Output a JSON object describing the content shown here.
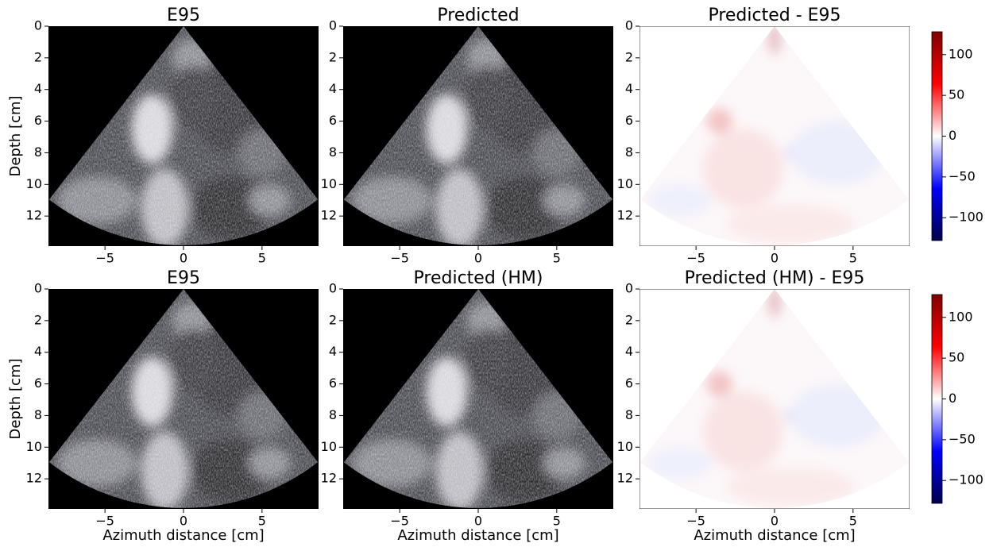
{
  "chart_data": [
    {
      "type": "image",
      "cmap": "gray",
      "title": "E95",
      "ylabel": "Depth [cm]",
      "xlim": [
        -8.6,
        8.6
      ],
      "ylim": [
        13.9,
        0
      ],
      "xticks": [
        {
          "value": -5,
          "label": "−5"
        },
        0,
        5
      ],
      "yticks": [
        0,
        2,
        4,
        6,
        8,
        10,
        12
      ]
    },
    {
      "type": "image",
      "cmap": "gray",
      "title": "Predicted",
      "xlim": [
        -8.6,
        8.6
      ],
      "ylim": [
        13.9,
        0
      ],
      "xticks": [
        {
          "value": -5,
          "label": "−5"
        },
        0,
        5
      ],
      "yticks": [
        0,
        2,
        4,
        6,
        8,
        10,
        12
      ]
    },
    {
      "type": "image",
      "cmap": "seismic",
      "title": "Predicted - E95",
      "xlim": [
        -8.6,
        8.6
      ],
      "ylim": [
        13.9,
        0
      ],
      "xticks": [
        {
          "value": -5,
          "label": "−5"
        },
        0,
        5
      ],
      "yticks": [
        0,
        2,
        4,
        6,
        8,
        10,
        12
      ],
      "colorbar": {
        "lim": [
          -128,
          128
        ],
        "ticks": [
          {
            "value": -100,
            "label": "−100"
          },
          {
            "value": -50,
            "label": "−50"
          },
          0,
          50,
          100
        ]
      }
    },
    {
      "type": "image",
      "cmap": "gray",
      "title": "E95",
      "ylabel": "Depth [cm]",
      "xlabel": "Azimuth distance [cm]",
      "xlim": [
        -8.6,
        8.6
      ],
      "ylim": [
        13.9,
        0
      ],
      "xticks": [
        {
          "value": -5,
          "label": "−5"
        },
        0,
        5
      ],
      "yticks": [
        0,
        2,
        4,
        6,
        8,
        10,
        12
      ]
    },
    {
      "type": "image",
      "cmap": "gray",
      "title": "Predicted (HM)",
      "xlabel": "Azimuth distance [cm]",
      "xlim": [
        -8.6,
        8.6
      ],
      "ylim": [
        13.9,
        0
      ],
      "xticks": [
        {
          "value": -5,
          "label": "−5"
        },
        0,
        5
      ],
      "yticks": [
        0,
        2,
        4,
        6,
        8,
        10,
        12
      ]
    },
    {
      "type": "image",
      "cmap": "seismic",
      "title": "Predicted (HM) - E95",
      "xlabel": "Azimuth distance [cm]",
      "xlim": [
        -8.6,
        8.6
      ],
      "ylim": [
        13.9,
        0
      ],
      "xticks": [
        {
          "value": -5,
          "label": "−5"
        },
        0,
        5
      ],
      "yticks": [
        0,
        2,
        4,
        6,
        8,
        10,
        12
      ],
      "colorbar": {
        "lim": [
          -128,
          128
        ],
        "ticks": [
          {
            "value": -100,
            "label": "−100"
          },
          {
            "value": -50,
            "label": "−50"
          },
          0,
          50,
          100
        ]
      }
    }
  ]
}
